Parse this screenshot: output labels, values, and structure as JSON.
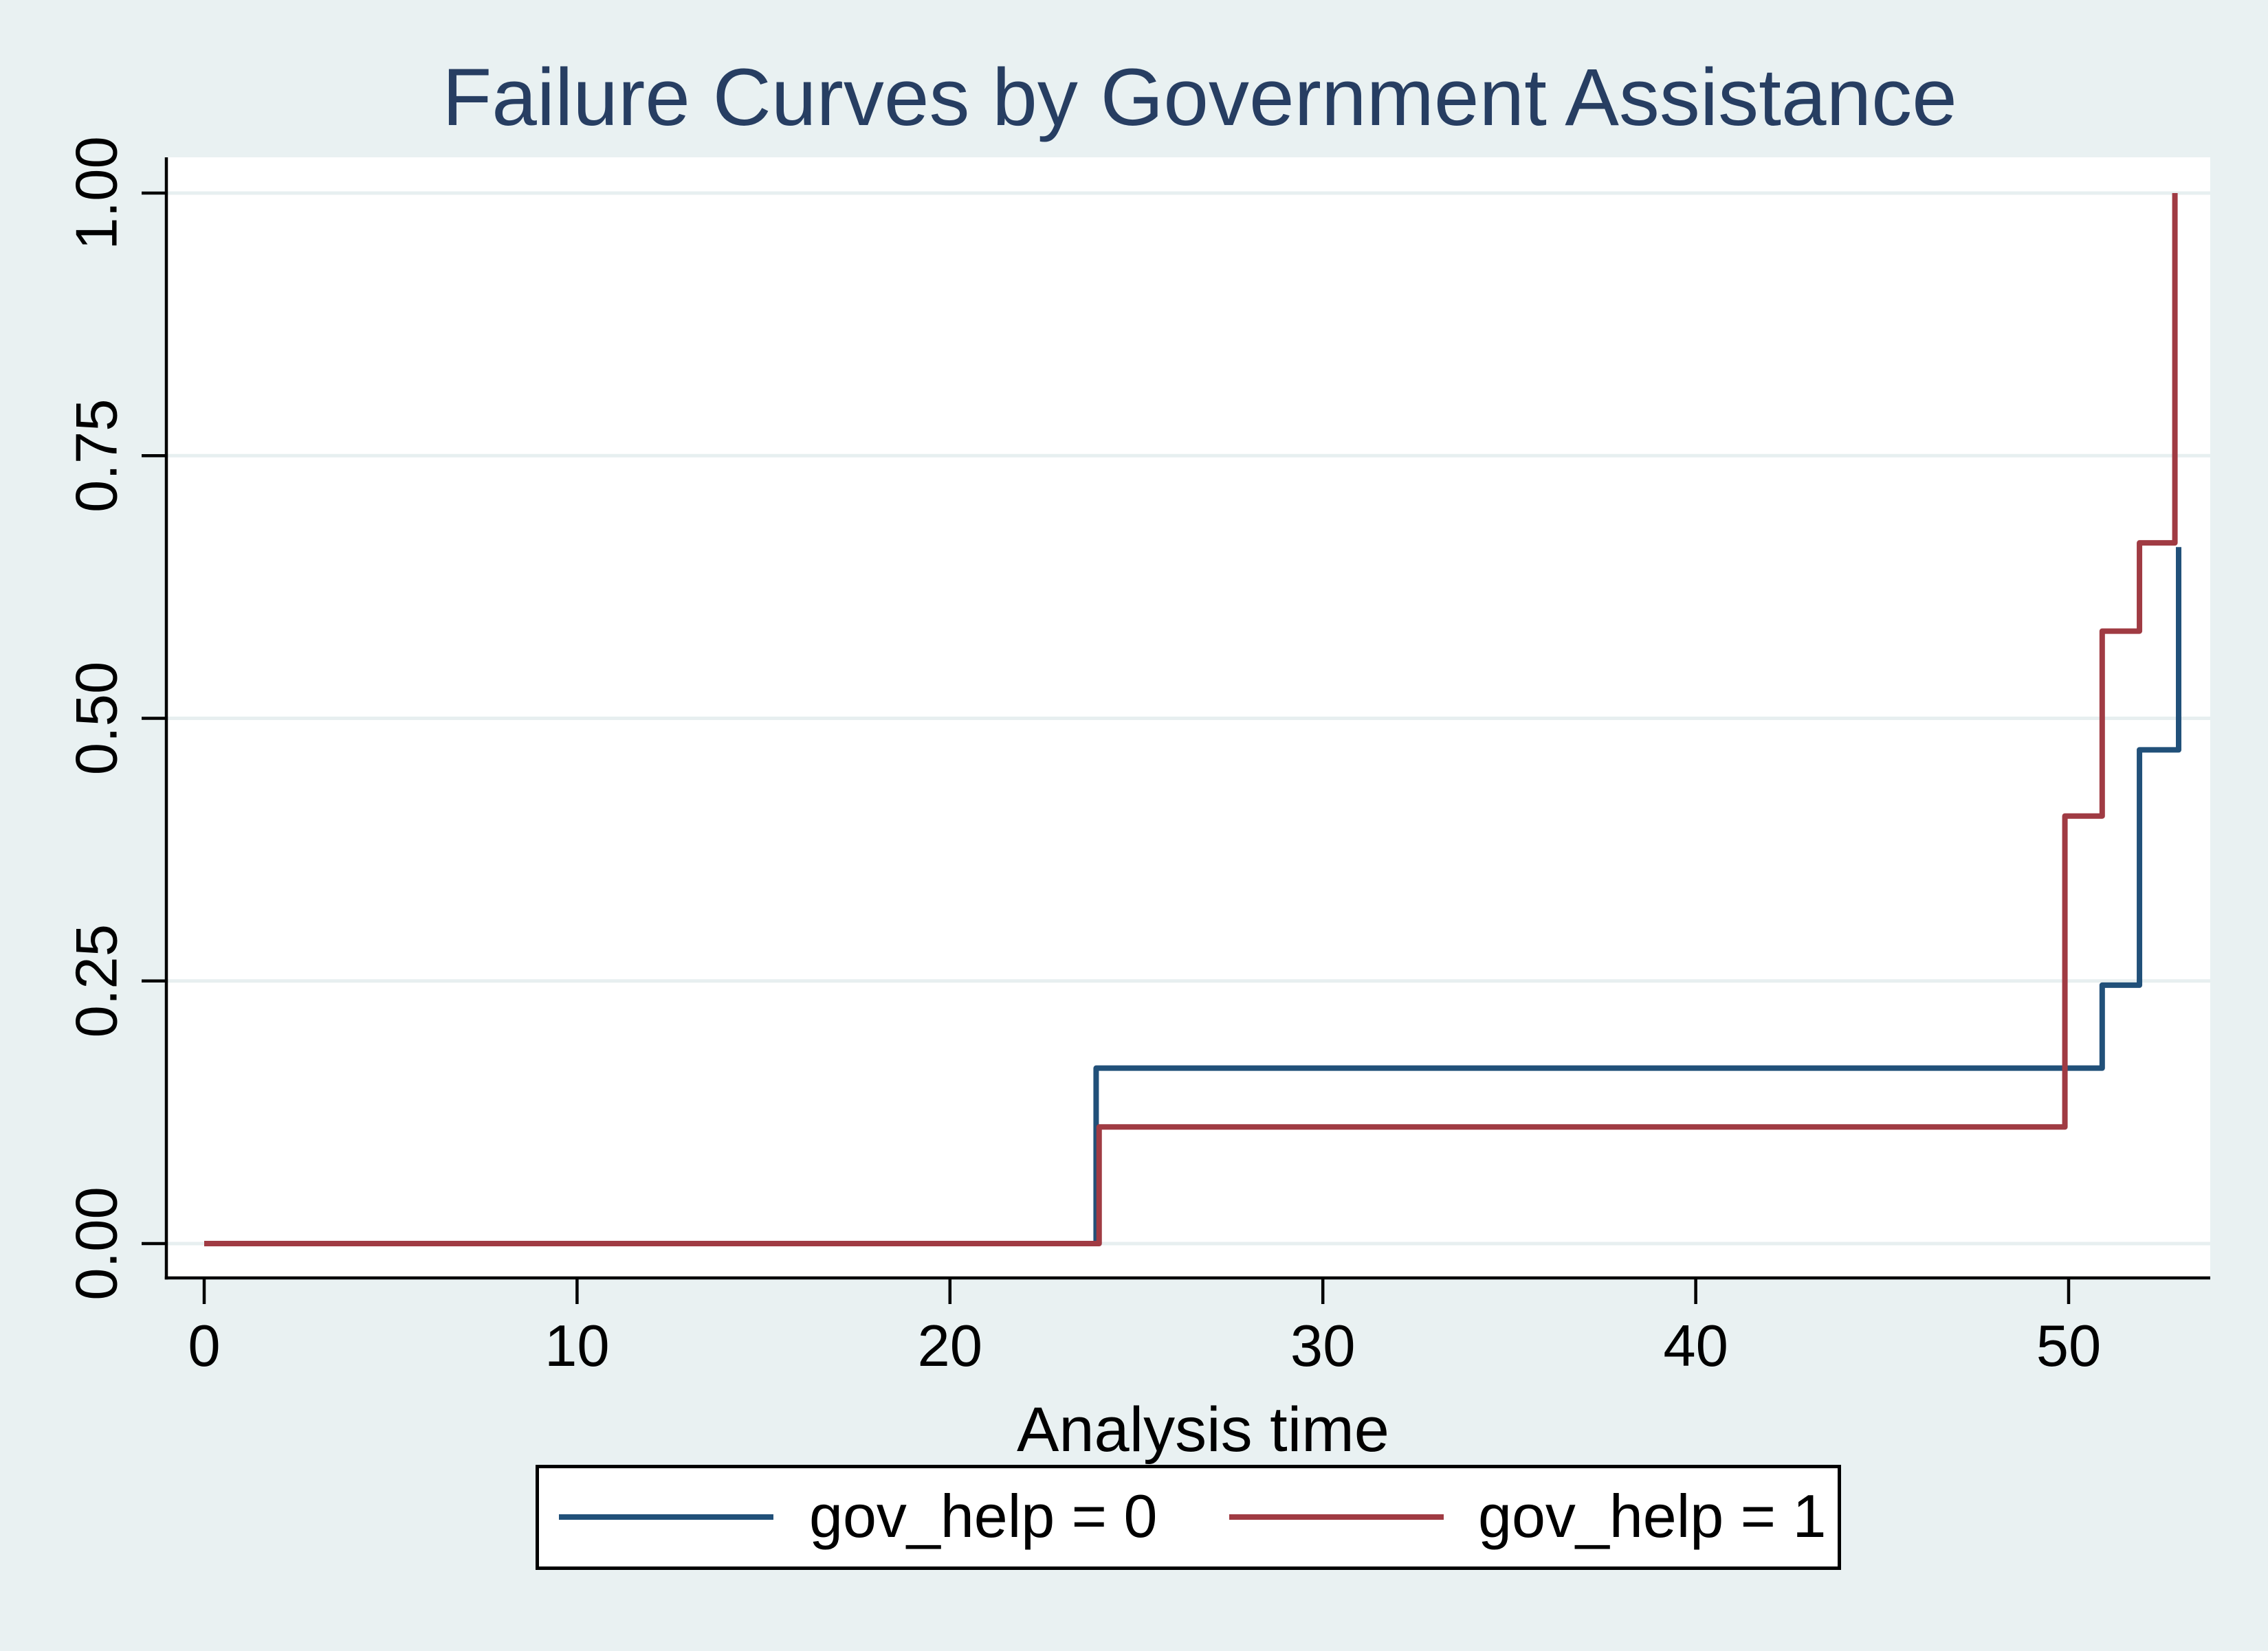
{
  "figure": {
    "title": "Failure Curves by Government Assistance",
    "background_color": "#e9f1f2",
    "plot_background_color": "#ffffff",
    "title_color": "#273e62",
    "axis_color": "#000000",
    "tick_label_color": "#000000"
  },
  "chart_data": {
    "type": "line",
    "subtype": "kaplan-meier-failure-step",
    "title": "Failure Curves by Government Assistance",
    "xlabel": "Analysis time",
    "ylabel": "",
    "xlim": [
      0,
      53.8
    ],
    "ylim": [
      0,
      1
    ],
    "xticks": [
      0,
      10,
      20,
      30,
      40,
      50
    ],
    "yticks": [
      0,
      0.25,
      0.5,
      0.75,
      1
    ],
    "ytick_labels": [
      "0.00",
      "0.25",
      "0.50",
      "0.75",
      "1.00"
    ],
    "grid": "horizontal-only",
    "gridline_color": "#e7eff0",
    "legend_position": "bottom-center",
    "series": [
      {
        "name": "gov_help = 0",
        "color": "#215079",
        "points": [
          [
            0,
            0
          ],
          [
            23.92,
            0
          ],
          [
            23.92,
            0.167
          ],
          [
            50.9,
            0.167
          ],
          [
            50.9,
            0.246
          ],
          [
            51.9,
            0.246
          ],
          [
            51.9,
            0.47
          ],
          [
            52.95,
            0.47
          ],
          [
            52.95,
            0.663
          ]
        ]
      },
      {
        "name": "gov_help = 1",
        "color": "#a03b43",
        "points": [
          [
            0,
            0
          ],
          [
            24,
            0
          ],
          [
            24,
            0.111
          ],
          [
            49.9,
            0.111
          ],
          [
            49.9,
            0.407
          ],
          [
            50.9,
            0.407
          ],
          [
            50.9,
            0.583
          ],
          [
            51.9,
            0.583
          ],
          [
            51.9,
            0.667
          ],
          [
            52.85,
            0.667
          ],
          [
            52.85,
            1.0
          ]
        ]
      }
    ]
  },
  "legend": {
    "entries": [
      {
        "label": "gov_help = 0",
        "color": "#215079"
      },
      {
        "label": "gov_help = 1",
        "color": "#a03b43"
      }
    ]
  }
}
